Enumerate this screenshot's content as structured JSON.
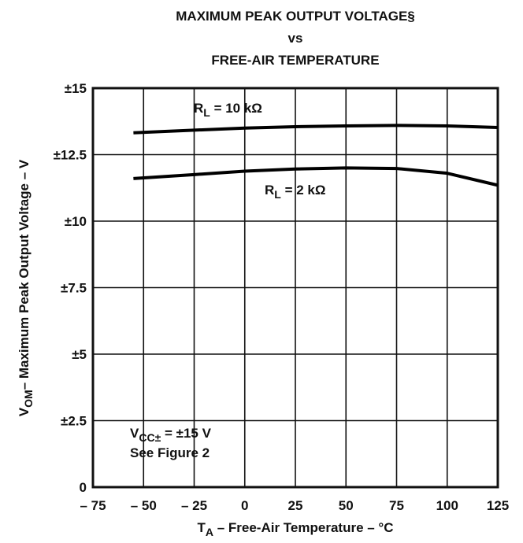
{
  "chart_data": {
    "type": "line",
    "title": [
      "MAXIMUM PEAK OUTPUT VOLTAGE§",
      "vs",
      "FREE-AIR TEMPERATURE"
    ],
    "y_label": {
      "main": "V",
      "sub": "OM",
      "rest": "– Maximum Peak Output Voltage – V"
    },
    "x_label": {
      "main": "T",
      "sub": "A",
      "rest": " – Free-Air Temperature – °C"
    },
    "x": [
      -55,
      -25,
      0,
      25,
      50,
      75,
      100,
      125
    ],
    "series": [
      {
        "color": "#000000",
        "values": [
          13.32,
          13.42,
          13.5,
          13.55,
          13.58,
          13.6,
          13.58,
          13.52
        ]
      },
      {
        "color": "#000000",
        "values": [
          11.6,
          11.75,
          11.88,
          11.96,
          12.0,
          11.98,
          11.8,
          11.35
        ]
      }
    ],
    "annotations": [
      {
        "main": "R",
        "sub": "L",
        "rest": " = 10 kΩ"
      },
      {
        "main": "R",
        "sub": "L",
        "rest": " = 2 kΩ"
      },
      {
        "main": "V",
        "sub": "CC±",
        "rest": " = ±15 V"
      },
      {
        "main": "See Figure 2"
      }
    ],
    "xlim": [
      -75,
      125
    ],
    "xticks": [
      {
        "value": -75,
        "label": "– 75"
      },
      {
        "value": -50,
        "label": "– 50"
      },
      {
        "value": -25,
        "label": "– 25"
      },
      0,
      25,
      50,
      75,
      100,
      125
    ],
    "ylim": [
      0,
      15
    ],
    "yticks": [
      0,
      {
        "value": 2.5,
        "label": "±2.5"
      },
      {
        "value": 5,
        "label": "±5"
      },
      {
        "value": 7.5,
        "label": "±7.5"
      },
      {
        "value": 10,
        "label": "±10"
      },
      {
        "value": 12.5,
        "label": "±12.5"
      },
      {
        "value": 15,
        "label": "±15"
      }
    ],
    "grid": true
  }
}
